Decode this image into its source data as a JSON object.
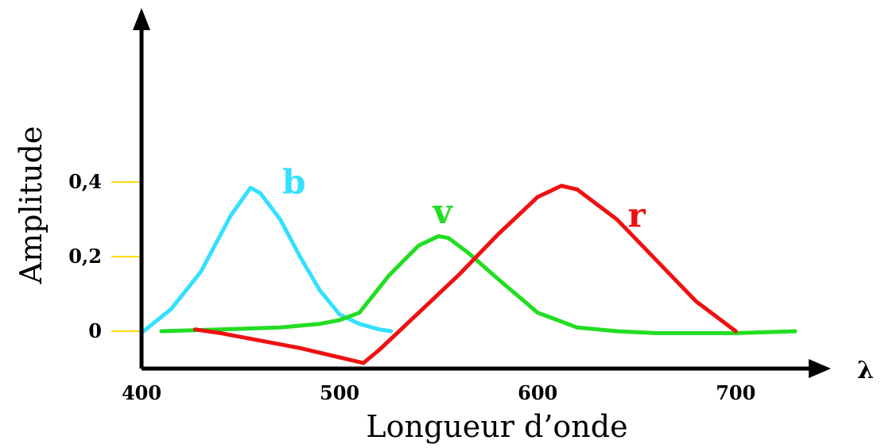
{
  "chart_data": {
    "type": "line",
    "xlabel": "Longueur d’onde",
    "ylabel": "Amplitude",
    "x_axis_symbol": "λ",
    "xlim": [
      400,
      730
    ],
    "ylim": [
      -0.1,
      0.82
    ],
    "x_ticks": [
      {
        "value": 400,
        "label": "400"
      },
      {
        "value": 500,
        "label": "500"
      },
      {
        "value": 600,
        "label": "600"
      },
      {
        "value": 700,
        "label": "700"
      }
    ],
    "y_ticks": [
      {
        "value": 0,
        "label": "0"
      },
      {
        "value": 0.2,
        "label": "0,2"
      },
      {
        "value": 0.4,
        "label": "0,4"
      }
    ],
    "tick_color": "#ffd700",
    "series": [
      {
        "name": "b",
        "color": "#33e0ff",
        "label_at": {
          "x": 477,
          "y": 0.37
        },
        "x": [
          401,
          415,
          430,
          445,
          455,
          460,
          470,
          480,
          490,
          500,
          510,
          520,
          526
        ],
        "y": [
          0.0,
          0.06,
          0.16,
          0.31,
          0.385,
          0.37,
          0.3,
          0.2,
          0.11,
          0.045,
          0.02,
          0.005,
          0.0
        ]
      },
      {
        "name": "v",
        "color": "#22dd22",
        "label_at": {
          "x": 552,
          "y": 0.29
        },
        "x": [
          410,
          440,
          470,
          490,
          500,
          510,
          525,
          540,
          550,
          555,
          565,
          580,
          600,
          620,
          640,
          660,
          700,
          730
        ],
        "y": [
          0.0,
          0.005,
          0.01,
          0.02,
          0.03,
          0.05,
          0.15,
          0.23,
          0.255,
          0.25,
          0.21,
          0.14,
          0.05,
          0.01,
          0.0,
          -0.005,
          -0.005,
          0.0
        ]
      },
      {
        "name": "r",
        "color": "#ee1111",
        "label_at": {
          "x": 650,
          "y": 0.28
        },
        "x": [
          427,
          440,
          460,
          480,
          500,
          512,
          520,
          540,
          560,
          580,
          600,
          612,
          620,
          640,
          660,
          680,
          700
        ],
        "y": [
          0.005,
          -0.005,
          -0.025,
          -0.045,
          -0.07,
          -0.085,
          -0.05,
          0.05,
          0.15,
          0.26,
          0.36,
          0.39,
          0.38,
          0.3,
          0.19,
          0.08,
          0.0
        ]
      }
    ]
  }
}
